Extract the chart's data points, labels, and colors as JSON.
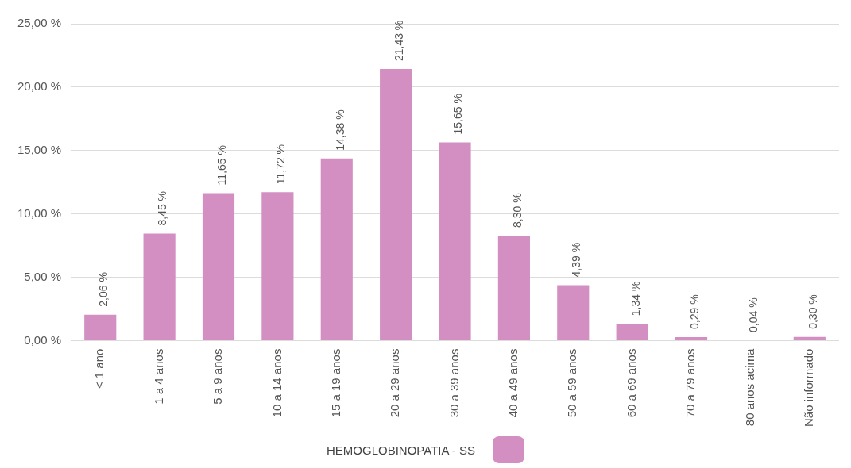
{
  "chart_data": {
    "type": "bar",
    "categories": [
      "< 1 ano",
      "1 a 4 anos",
      "5 a 9 anos",
      "10 a 14 anos",
      "15 a 19 anos",
      "20 a 29 anos",
      "30 a 39 anos",
      "40 a 49 anos",
      "50 a 59 anos",
      "60 a 69 anos",
      "70 a 79 anos",
      "80 anos acima",
      "Não informado"
    ],
    "series": [
      {
        "name": "HEMOGLOBINOPATIA - SS",
        "color": "#d38fc2",
        "values": [
          2.06,
          8.45,
          11.65,
          11.72,
          14.38,
          21.43,
          15.65,
          8.3,
          4.39,
          1.34,
          0.29,
          0.04,
          0.3
        ],
        "value_labels": [
          "2,06 %",
          "8,45 %",
          "11,65 %",
          "11,72 %",
          "14,38 %",
          "21,43 %",
          "15,65 %",
          "8,30 %",
          "4,39 %",
          "1,34 %",
          "0,29 %",
          "0,04 %",
          "0,30 %"
        ]
      }
    ],
    "ylim": [
      0,
      25
    ],
    "yticks": [
      {
        "value": 0,
        "label": "0,00 %"
      },
      {
        "value": 5,
        "label": "5,00 %"
      },
      {
        "value": 10,
        "label": "10,00 %"
      },
      {
        "value": 15,
        "label": "15,00 %"
      },
      {
        "value": 20,
        "label": "20,00 %"
      },
      {
        "value": 25,
        "label": "25,00 %"
      }
    ],
    "grid": "y",
    "legend": "bottom"
  }
}
